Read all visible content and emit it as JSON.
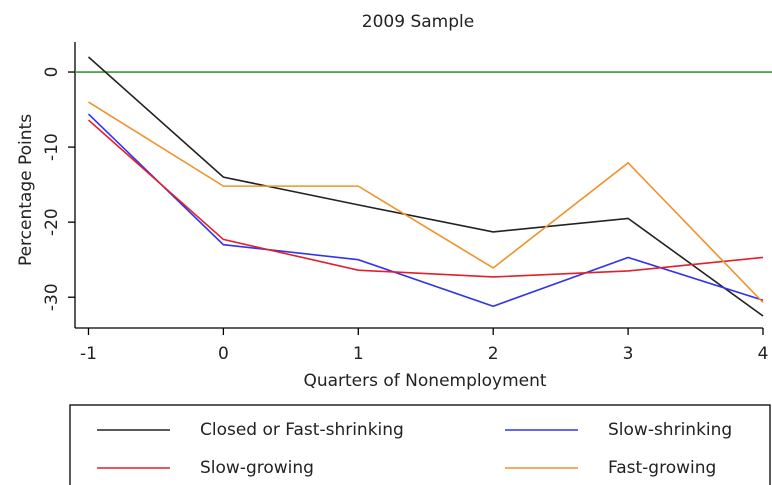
{
  "chart_data": {
    "type": "line",
    "title": "2009 Sample",
    "x_label": "Quarters of Nonemployment",
    "y_label": "Percentage Points",
    "x": [
      -1,
      0,
      1,
      2,
      3,
      4
    ],
    "xlim": [
      -1.1,
      4
    ],
    "xticks": [
      -1,
      0,
      1,
      2,
      3,
      4
    ],
    "ylim": [
      -34.1,
      4
    ],
    "yticks": [
      0,
      -10,
      -20,
      -30
    ],
    "reference_line": {
      "value": 0,
      "color": "#3a9a3a"
    },
    "legend": "bottom",
    "series": [
      {
        "name": "Closed or Fast-shrinking",
        "color": "#222222",
        "values": [
          2,
          -14,
          -17.7,
          -21.3,
          -19.5,
          -32.5
        ]
      },
      {
        "name": "Slow-shrinking",
        "color": "#3333ee",
        "values": [
          -5.6,
          -23,
          -25,
          -31.2,
          -24.7,
          -30.4
        ]
      },
      {
        "name": "Slow-growing",
        "color": "#e0202a",
        "values": [
          -6.4,
          -22.3,
          -26.4,
          -27.3,
          -26.5,
          -24.7
        ]
      },
      {
        "name": "Fast-growing",
        "color": "#f0922a",
        "values": [
          -4,
          -15.2,
          -15.2,
          -26.1,
          -12.1,
          -30.7
        ]
      }
    ]
  }
}
